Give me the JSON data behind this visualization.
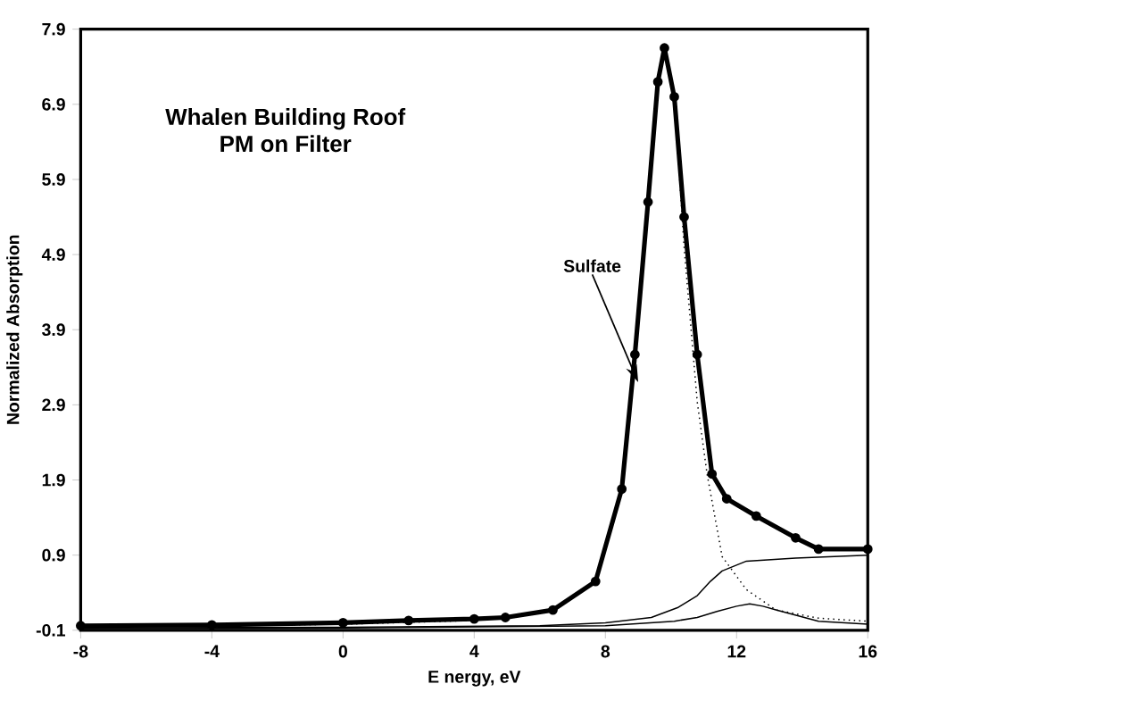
{
  "chart_data": {
    "type": "line",
    "title": "Whalen Building Roof",
    "subtitle": "PM on Filter",
    "xlabel": "E nergy, eV",
    "ylabel": "Normalized Absorption",
    "xlim": [
      -8,
      16
    ],
    "ylim": [
      -0.1,
      7.9
    ],
    "xticks": [
      -8,
      -4,
      0,
      4,
      8,
      12,
      16
    ],
    "yticks": [
      -0.1,
      0.9,
      1.9,
      2.9,
      3.9,
      4.9,
      5.9,
      6.9,
      7.9
    ],
    "grid": false,
    "annotations": [
      {
        "text": "Sulfate",
        "x": 9,
        "y": 3.2
      }
    ],
    "series": [
      {
        "color": "#000000",
        "line_style": "solid",
        "marker": "circle",
        "x": [
          -8,
          -4,
          0,
          2,
          4,
          4.95,
          6.4,
          7.7,
          8.5,
          8.9,
          9.3,
          9.6,
          9.8,
          10.1,
          10.4,
          10.8,
          11.25,
          11.7,
          12.6,
          13.8,
          14.5,
          16
        ],
        "values": [
          -0.04,
          -0.03,
          0.0,
          0.03,
          0.05,
          0.07,
          0.17,
          0.55,
          1.78,
          3.57,
          5.6,
          7.2,
          7.65,
          7.0,
          5.4,
          3.57,
          1.98,
          1.65,
          1.42,
          1.13,
          0.98,
          0.98
        ]
      },
      {
        "color": "#000000",
        "line_style": "dotted",
        "x": [
          -8,
          -4,
          0,
          4,
          4.95,
          6.4,
          7.7,
          8.5,
          8.9,
          9.3,
          9.6,
          9.8,
          10.1,
          10.4,
          10.8,
          11.1,
          11.56,
          12.3,
          13.2,
          14.5,
          16
        ],
        "values": [
          -0.05,
          -0.04,
          -0.02,
          0.03,
          0.07,
          0.17,
          0.55,
          1.78,
          3.57,
          5.6,
          7.2,
          7.65,
          7.0,
          5.0,
          2.94,
          1.98,
          0.88,
          0.44,
          0.17,
          0.06,
          0.02
        ]
      },
      {
        "color": "#000000",
        "line_style": "solid",
        "x": [
          -8,
          0,
          6,
          8,
          9.4,
          10.2,
          10.8,
          11.2,
          11.56,
          12.3,
          13.8,
          16
        ],
        "values": [
          -0.07,
          -0.06,
          -0.04,
          0.0,
          0.07,
          0.2,
          0.36,
          0.55,
          0.69,
          0.82,
          0.86,
          0.9
        ]
      },
      {
        "color": "#000000",
        "line_style": "solid",
        "x": [
          -8,
          0,
          8,
          10.1,
          10.8,
          11.4,
          12.0,
          12.4,
          12.8,
          13.2,
          14.5,
          16
        ],
        "values": [
          -0.08,
          -0.07,
          -0.04,
          0.02,
          0.07,
          0.15,
          0.22,
          0.25,
          0.22,
          0.17,
          0.02,
          -0.02
        ]
      }
    ]
  }
}
